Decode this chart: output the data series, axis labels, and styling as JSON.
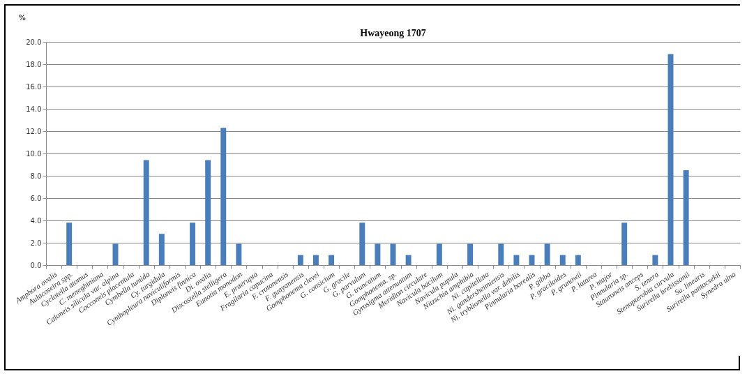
{
  "chart_data": {
    "type": "bar",
    "title": "Hwayeong 1707",
    "ylabel": "%",
    "categories": [
      "Amphora ovalis",
      "Aulacoseira spp.",
      "Cyclotella atomus",
      "C. meneghiniana",
      "Caloneis silicula var. alpina",
      "Cocconeis placentula",
      "Cymbella tumida",
      "Cy. turgidula",
      "Cymbopleura naviculiformis",
      "Diploneis finnica",
      "Di. ovalis",
      "Discostella stelligera",
      "Eunotia monodon",
      "E. praerupta",
      "Fragilaria capucina",
      "F. crotonensis",
      "F. guayanensis",
      "Gomphonema clevei",
      "G. consictum",
      "G. gracile",
      "G. parvulum",
      "G. truncatum",
      "Gomphonema. sp.",
      "Gyrosigma attenuatum",
      "Meridion circulare",
      "Navicula bacilum",
      "Navicula pupula",
      "Nitzschia amphibia",
      "Ni. capitellata",
      "Ni. gandersheimiensis",
      "Ni. tryblionella var. debilis",
      "Pinnularia borealis",
      "P. gibba",
      "P. graciloides",
      "P. grunowii",
      "P. latarea",
      "P. major",
      "Pinnularia sp.",
      "Stauroneis anceps",
      "S. tenera",
      "Stenopterobia curvula",
      "Surirella brebissonii",
      "Su. linearis",
      "Surirella pantocsekii",
      "Synedra ulna"
    ],
    "values": [
      0,
      3.8,
      0,
      0,
      1.9,
      0,
      9.4,
      2.8,
      0,
      3.8,
      9.4,
      12.3,
      1.9,
      0,
      0,
      0,
      0.9,
      0.9,
      0.9,
      0,
      3.8,
      1.9,
      1.9,
      0.9,
      0,
      1.9,
      0,
      1.9,
      0,
      1.9,
      0.9,
      0.9,
      1.9,
      0.9,
      0.9,
      0,
      0,
      3.8,
      0,
      0.9,
      18.9,
      8.5,
      0,
      0,
      0
    ],
    "color": "#4a7ebb",
    "ylim": [
      0,
      20
    ],
    "yticks": [
      {
        "value": 0,
        "label": "0.0"
      },
      {
        "value": 2,
        "label": "2.0"
      },
      {
        "value": 4,
        "label": "4.0"
      },
      {
        "value": 6,
        "label": "6.0"
      },
      {
        "value": 8,
        "label": "8.0"
      },
      {
        "value": 10,
        "label": "10.0"
      },
      {
        "value": 12,
        "label": "12.0"
      },
      {
        "value": 14,
        "label": "14.0"
      },
      {
        "value": 16,
        "label": "16.0"
      },
      {
        "value": 18,
        "label": "18.0"
      },
      {
        "value": 20,
        "label": "20.0"
      }
    ],
    "grid": "y"
  }
}
